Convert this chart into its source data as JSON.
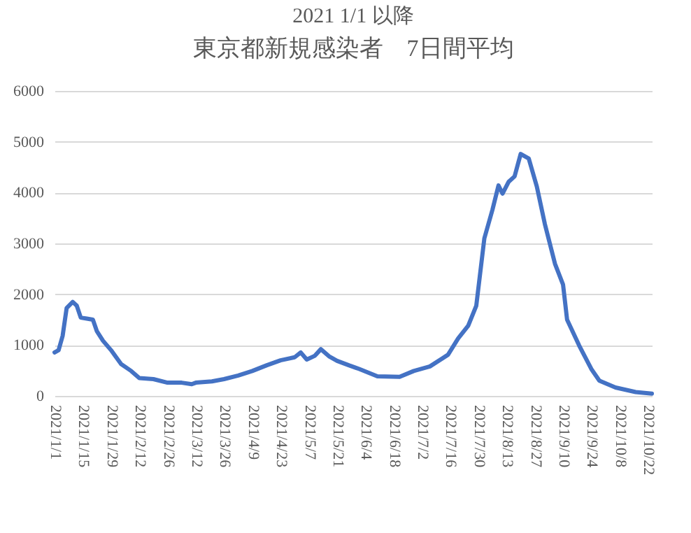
{
  "chart_data": {
    "type": "line",
    "title": "2021 1/1 以降",
    "subtitle": "東京都新規感染者　7日間平均",
    "x": [
      "2021-01-01",
      "2021-01-03",
      "2021-01-05",
      "2021-01-07",
      "2021-01-10",
      "2021-01-12",
      "2021-01-14",
      "2021-01-17",
      "2021-01-20",
      "2021-01-22",
      "2021-01-25",
      "2021-01-29",
      "2021-02-03",
      "2021-02-08",
      "2021-02-12",
      "2021-02-19",
      "2021-02-26",
      "2021-03-05",
      "2021-03-10",
      "2021-03-12",
      "2021-03-20",
      "2021-03-26",
      "2021-04-02",
      "2021-04-09",
      "2021-04-16",
      "2021-04-23",
      "2021-04-30",
      "2021-05-03",
      "2021-05-06",
      "2021-05-10",
      "2021-05-13",
      "2021-05-17",
      "2021-05-21",
      "2021-05-27",
      "2021-06-01",
      "2021-06-10",
      "2021-06-21",
      "2021-06-28",
      "2021-07-06",
      "2021-07-15",
      "2021-07-20",
      "2021-07-25",
      "2021-07-29",
      "2021-08-02",
      "2021-08-06",
      "2021-08-09",
      "2021-08-11",
      "2021-08-14",
      "2021-08-17",
      "2021-08-20",
      "2021-08-24",
      "2021-08-28",
      "2021-09-01",
      "2021-09-06",
      "2021-09-10",
      "2021-09-12",
      "2021-09-18",
      "2021-09-24",
      "2021-09-28",
      "2021-10-06",
      "2021-10-16",
      "2021-10-24"
    ],
    "series": [
      {
        "color": "#4472c4",
        "values": [
          855,
          900,
          1180,
          1730,
          1850,
          1775,
          1540,
          1520,
          1500,
          1270,
          1085,
          900,
          625,
          490,
          350,
          330,
          260,
          260,
          230,
          260,
          285,
          330,
          400,
          490,
          600,
          700,
          760,
          855,
          715,
          790,
          920,
          780,
          690,
          600,
          530,
          385,
          375,
          490,
          580,
          810,
          1130,
          1380,
          1775,
          3100,
          3660,
          4140,
          3980,
          4210,
          4320,
          4760,
          4670,
          4120,
          3380,
          2600,
          2190,
          1500,
          990,
          530,
          300,
          165,
          75,
          45
        ]
      }
    ],
    "xlim": [
      "2021-01-01",
      "2021-10-24"
    ],
    "xticks": [
      {
        "value": "2021-01-01",
        "label": "2021/1/1"
      },
      {
        "value": "2021-01-15",
        "label": "2021/1/15"
      },
      {
        "value": "2021-01-29",
        "label": "2021/1/29"
      },
      {
        "value": "2021-02-12",
        "label": "2021/2/12"
      },
      {
        "value": "2021-02-26",
        "label": "2021/2/26"
      },
      {
        "value": "2021-03-12",
        "label": "2021/3/12"
      },
      {
        "value": "2021-03-26",
        "label": "2021/3/26"
      },
      {
        "value": "2021-04-09",
        "label": "2021/4/9"
      },
      {
        "value": "2021-04-23",
        "label": "2021/4/23"
      },
      {
        "value": "2021-05-07",
        "label": "2021/5/7"
      },
      {
        "value": "2021-05-21",
        "label": "2021/5/21"
      },
      {
        "value": "2021-06-04",
        "label": "2021/6/4"
      },
      {
        "value": "2021-06-18",
        "label": "2021/6/18"
      },
      {
        "value": "2021-07-02",
        "label": "2021/7/2"
      },
      {
        "value": "2021-07-16",
        "label": "2021/7/16"
      },
      {
        "value": "2021-07-30",
        "label": "2021/7/30"
      },
      {
        "value": "2021-08-13",
        "label": "2021/8/13"
      },
      {
        "value": "2021-08-27",
        "label": "2021/8/27"
      },
      {
        "value": "2021-09-10",
        "label": "2021/9/10"
      },
      {
        "value": "2021-09-24",
        "label": "2021/9/24"
      },
      {
        "value": "2021-10-08",
        "label": "2021/10/8"
      },
      {
        "value": "2021-10-22",
        "label": "2021/10/22"
      }
    ],
    "ylim": [
      0,
      6000
    ],
    "yticks": [
      0,
      1000,
      2000,
      3000,
      4000,
      5000,
      6000
    ],
    "grid": "y",
    "line_style": "solid",
    "marker": "none"
  }
}
